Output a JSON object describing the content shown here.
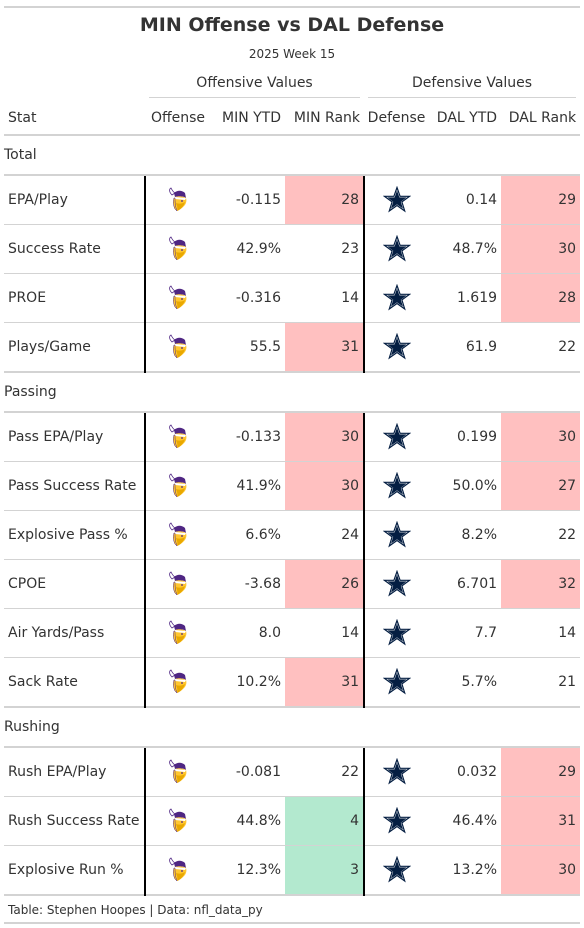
{
  "title": "MIN Offense vs DAL Defense",
  "subtitle": "2025 Week 15",
  "spanners": {
    "offense": "Offensive Values",
    "defense": "Defensive Values"
  },
  "columns": {
    "stat": "Stat",
    "offense": "Offense",
    "min_ytd": "MIN YTD",
    "min_rank": "MIN Rank",
    "defense": "Defense",
    "dal_ytd": "DAL YTD",
    "dal_rank": "DAL Rank"
  },
  "icons": {
    "offense": "vikings-logo-icon",
    "defense": "cowboys-star-icon"
  },
  "colors": {
    "bad_rank": "#ffc0c0",
    "good_rank": "#b3e9cf",
    "vikings_purple": "#4f2683",
    "vikings_gold": "#ffc62f",
    "cowboys_navy": "#041e42"
  },
  "groups": [
    {
      "name": "Total",
      "rows": [
        {
          "stat": "EPA/Play",
          "min_ytd": "-0.115",
          "min_rank": "28",
          "min_rank_class": "bad",
          "dal_ytd": "0.14",
          "dal_rank": "29",
          "dal_rank_class": "bad"
        },
        {
          "stat": "Success Rate",
          "min_ytd": "42.9%",
          "min_rank": "23",
          "min_rank_class": "",
          "dal_ytd": "48.7%",
          "dal_rank": "30",
          "dal_rank_class": "bad"
        },
        {
          "stat": "PROE",
          "min_ytd": "-0.316",
          "min_rank": "14",
          "min_rank_class": "",
          "dal_ytd": "1.619",
          "dal_rank": "28",
          "dal_rank_class": "bad"
        },
        {
          "stat": "Plays/Game",
          "min_ytd": "55.5",
          "min_rank": "31",
          "min_rank_class": "bad",
          "dal_ytd": "61.9",
          "dal_rank": "22",
          "dal_rank_class": ""
        }
      ]
    },
    {
      "name": "Passing",
      "rows": [
        {
          "stat": "Pass EPA/Play",
          "min_ytd": "-0.133",
          "min_rank": "30",
          "min_rank_class": "bad",
          "dal_ytd": "0.199",
          "dal_rank": "30",
          "dal_rank_class": "bad"
        },
        {
          "stat": "Pass Success Rate",
          "min_ytd": "41.9%",
          "min_rank": "30",
          "min_rank_class": "bad",
          "dal_ytd": "50.0%",
          "dal_rank": "27",
          "dal_rank_class": "bad"
        },
        {
          "stat": "Explosive Pass %",
          "min_ytd": "6.6%",
          "min_rank": "24",
          "min_rank_class": "",
          "dal_ytd": "8.2%",
          "dal_rank": "22",
          "dal_rank_class": ""
        },
        {
          "stat": "CPOE",
          "min_ytd": "-3.68",
          "min_rank": "26",
          "min_rank_class": "bad",
          "dal_ytd": "6.701",
          "dal_rank": "32",
          "dal_rank_class": "bad"
        },
        {
          "stat": "Air Yards/Pass",
          "min_ytd": "8.0",
          "min_rank": "14",
          "min_rank_class": "",
          "dal_ytd": "7.7",
          "dal_rank": "14",
          "dal_rank_class": ""
        },
        {
          "stat": "Sack Rate",
          "min_ytd": "10.2%",
          "min_rank": "31",
          "min_rank_class": "bad",
          "dal_ytd": "5.7%",
          "dal_rank": "21",
          "dal_rank_class": ""
        }
      ]
    },
    {
      "name": "Rushing",
      "rows": [
        {
          "stat": "Rush EPA/Play",
          "min_ytd": "-0.081",
          "min_rank": "22",
          "min_rank_class": "",
          "dal_ytd": "0.032",
          "dal_rank": "29",
          "dal_rank_class": "bad"
        },
        {
          "stat": "Rush Success Rate",
          "min_ytd": "44.8%",
          "min_rank": "4",
          "min_rank_class": "good",
          "dal_ytd": "46.4%",
          "dal_rank": "31",
          "dal_rank_class": "bad"
        },
        {
          "stat": "Explosive Run %",
          "min_ytd": "12.3%",
          "min_rank": "3",
          "min_rank_class": "good",
          "dal_ytd": "13.2%",
          "dal_rank": "30",
          "dal_rank_class": "bad"
        }
      ]
    }
  ],
  "source_note": "Table: Stephen Hoopes | Data: nfl_data_py"
}
